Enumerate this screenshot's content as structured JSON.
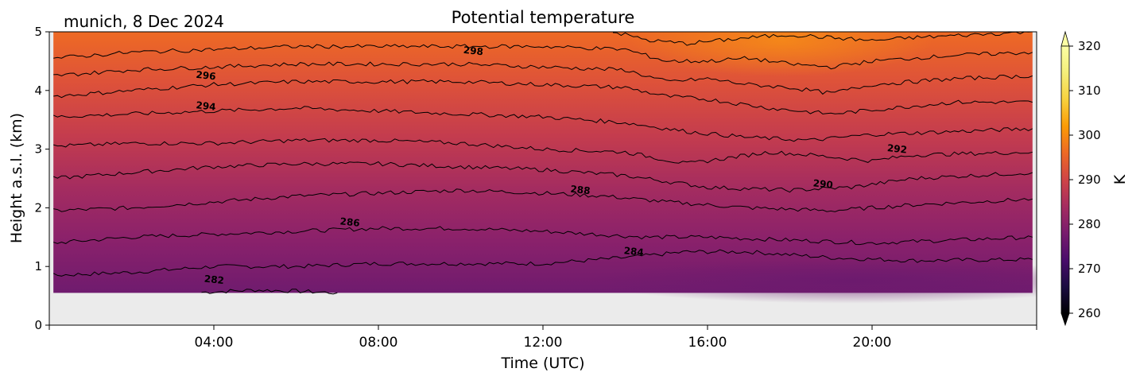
{
  "chart_data": {
    "type": "heatmap",
    "title": "Potential temperature",
    "subtitle": "munich, 8 Dec 2024",
    "xlabel": "Time (UTC)",
    "ylabel": "Height a.s.l. (km)",
    "colorbar_label": "K",
    "x_ticks": [
      "04:00",
      "08:00",
      "12:00",
      "16:00",
      "20:00"
    ],
    "x_tick_hours": [
      4,
      8,
      12,
      16,
      20
    ],
    "xlim_hours": [
      0,
      24
    ],
    "y_ticks": [
      "0",
      "1",
      "2",
      "3",
      "4",
      "5"
    ],
    "ylim_km": [
      0,
      5
    ],
    "data_height_range_km": [
      0.55,
      5.0
    ],
    "data_time_range_hours": [
      0.1,
      23.9
    ],
    "colorbar_ticks": [
      "260",
      "270",
      "280",
      "290",
      "300",
      "310",
      "320"
    ],
    "colorbar_range": [
      260,
      320
    ],
    "colormap": "inferno",
    "contour_interval": 2,
    "contour_labels": [
      {
        "text": "282",
        "value": 282,
        "hour": 4.0,
        "km": 0.72
      },
      {
        "text": "284",
        "value": 284,
        "hour": 14.2,
        "km": 1.2
      },
      {
        "text": "286",
        "value": 286,
        "hour": 7.3,
        "km": 1.7
      },
      {
        "text": "288",
        "value": 288,
        "hour": 12.9,
        "km": 2.25
      },
      {
        "text": "290",
        "value": 290,
        "hour": 18.8,
        "km": 2.35
      },
      {
        "text": "292",
        "value": 292,
        "hour": 20.6,
        "km": 2.95
      },
      {
        "text": "294",
        "value": 294,
        "hour": 3.8,
        "km": 3.68
      },
      {
        "text": "296",
        "value": 296,
        "hour": 3.8,
        "km": 4.2
      },
      {
        "text": "298",
        "value": 298,
        "hour": 10.3,
        "km": 4.62
      }
    ],
    "contours": [
      {
        "value": 282,
        "points": [
          [
            3.7,
            0.56
          ],
          [
            5,
            0.6
          ],
          [
            6,
            0.58
          ],
          [
            7,
            0.55
          ]
        ]
      },
      {
        "value": 284,
        "points": [
          [
            0.1,
            0.85
          ],
          [
            2,
            0.9
          ],
          [
            4,
            1.0
          ],
          [
            6,
            1.0
          ],
          [
            8,
            1.05
          ],
          [
            10,
            1.05
          ],
          [
            12,
            1.05
          ],
          [
            14,
            1.15
          ],
          [
            15.5,
            1.25
          ],
          [
            17,
            1.25
          ],
          [
            19,
            1.15
          ],
          [
            21,
            1.1
          ],
          [
            23.9,
            1.12
          ]
        ]
      },
      {
        "value": 286,
        "points": [
          [
            0.1,
            1.4
          ],
          [
            2,
            1.5
          ],
          [
            4,
            1.55
          ],
          [
            6,
            1.6
          ],
          [
            8,
            1.65
          ],
          [
            10,
            1.65
          ],
          [
            12,
            1.6
          ],
          [
            14.5,
            1.5
          ],
          [
            16,
            1.5
          ],
          [
            18,
            1.45
          ],
          [
            20,
            1.4
          ],
          [
            22,
            1.45
          ],
          [
            23.9,
            1.5
          ]
        ]
      },
      {
        "value": 288,
        "points": [
          [
            0.1,
            1.95
          ],
          [
            2,
            2.0
          ],
          [
            4,
            2.1
          ],
          [
            6,
            2.2
          ],
          [
            8,
            2.25
          ],
          [
            10,
            2.3
          ],
          [
            12,
            2.25
          ],
          [
            13.5,
            2.2
          ],
          [
            15,
            2.1
          ],
          [
            17,
            2.0
          ],
          [
            19,
            1.95
          ],
          [
            21,
            2.05
          ],
          [
            23.9,
            2.15
          ]
        ]
      },
      {
        "value": 290,
        "points": [
          [
            0.1,
            2.5
          ],
          [
            2,
            2.6
          ],
          [
            4,
            2.7
          ],
          [
            6,
            2.75
          ],
          [
            8,
            2.75
          ],
          [
            10,
            2.7
          ],
          [
            12,
            2.65
          ],
          [
            14,
            2.55
          ],
          [
            16,
            2.35
          ],
          [
            18,
            2.3
          ],
          [
            19.5,
            2.35
          ],
          [
            21,
            2.5
          ],
          [
            23.9,
            2.6
          ]
        ]
      },
      {
        "value": 292,
        "points": [
          [
            0.1,
            3.05
          ],
          [
            2,
            3.1
          ],
          [
            4,
            3.1
          ],
          [
            6,
            3.15
          ],
          [
            8,
            3.15
          ],
          [
            10,
            3.1
          ],
          [
            12,
            3.0
          ],
          [
            14,
            2.95
          ],
          [
            15.5,
            2.75
          ],
          [
            17.5,
            2.95
          ],
          [
            18.5,
            2.9
          ],
          [
            20,
            2.8
          ],
          [
            21,
            2.9
          ],
          [
            23.9,
            2.95
          ]
        ]
      },
      {
        "value": 294,
        "points": [
          [
            0.1,
            3.55
          ],
          [
            2,
            3.6
          ],
          [
            4,
            3.65
          ],
          [
            6,
            3.7
          ],
          [
            8,
            3.65
          ],
          [
            10,
            3.6
          ],
          [
            12,
            3.55
          ],
          [
            14,
            3.45
          ],
          [
            15.5,
            3.3
          ],
          [
            17,
            3.2
          ],
          [
            18.5,
            3.15
          ],
          [
            20,
            3.25
          ],
          [
            22,
            3.3
          ],
          [
            23.9,
            3.35
          ]
        ]
      },
      {
        "value": 296,
        "points": [
          [
            0.1,
            3.9
          ],
          [
            2,
            4.0
          ],
          [
            4,
            4.1
          ],
          [
            6,
            4.15
          ],
          [
            8,
            4.15
          ],
          [
            10,
            4.15
          ],
          [
            12,
            4.1
          ],
          [
            14,
            4.05
          ],
          [
            15,
            3.9
          ],
          [
            16,
            3.85
          ],
          [
            17.5,
            3.7
          ],
          [
            19,
            3.6
          ],
          [
            20.5,
            3.7
          ],
          [
            22,
            3.8
          ],
          [
            23.9,
            3.8
          ]
        ]
      },
      {
        "value": 298,
        "points": [
          [
            0.1,
            4.25
          ],
          [
            2,
            4.35
          ],
          [
            4,
            4.4
          ],
          [
            6,
            4.45
          ],
          [
            8,
            4.45
          ],
          [
            10,
            4.45
          ],
          [
            12,
            4.4
          ],
          [
            14,
            4.35
          ],
          [
            15,
            4.15
          ],
          [
            16,
            4.2
          ],
          [
            17,
            4.1
          ],
          [
            18,
            4.05
          ],
          [
            19,
            3.95
          ],
          [
            20,
            4.1
          ],
          [
            22,
            4.2
          ],
          [
            23.9,
            4.25
          ]
        ]
      },
      {
        "value": 300,
        "points": [
          [
            0.1,
            4.55
          ],
          [
            2,
            4.65
          ],
          [
            4,
            4.7
          ],
          [
            6,
            4.75
          ],
          [
            8,
            4.75
          ],
          [
            10,
            4.75
          ],
          [
            12,
            4.75
          ],
          [
            14,
            4.7
          ],
          [
            15,
            4.5
          ],
          [
            16,
            4.5
          ],
          [
            17,
            4.55
          ],
          [
            18,
            4.45
          ],
          [
            19,
            4.4
          ],
          [
            20,
            4.5
          ],
          [
            22,
            4.6
          ],
          [
            23.9,
            4.65
          ]
        ]
      },
      {
        "value": 302,
        "points": [
          [
            13.7,
            5.0
          ],
          [
            14.6,
            4.85
          ],
          [
            15.5,
            4.8
          ],
          [
            17,
            4.9
          ],
          [
            18,
            4.95
          ],
          [
            19,
            4.9
          ],
          [
            20,
            4.85
          ],
          [
            21,
            4.9
          ],
          [
            23.9,
            5.0
          ]
        ]
      }
    ],
    "color_field_notes": {
      "low_value_at_bottom": 280,
      "high_value_at_top": 302
    }
  },
  "colors": {
    "missing_data_background": "#ebebeb",
    "contour_line": "#000000"
  }
}
